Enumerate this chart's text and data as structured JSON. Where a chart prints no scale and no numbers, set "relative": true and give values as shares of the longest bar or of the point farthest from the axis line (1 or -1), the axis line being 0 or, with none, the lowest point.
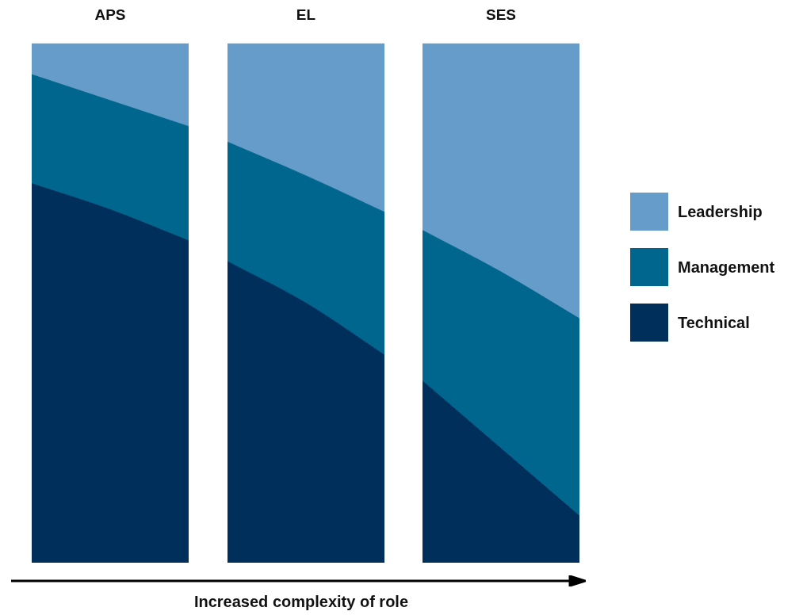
{
  "chart_data": [
    {
      "type": "area",
      "title": "APS",
      "stacked": true,
      "relative": true,
      "tick_labels": false,
      "marker": "none",
      "categories": [
        null,
        null,
        null
      ],
      "series": [
        {
          "color": "#002f5c",
          "values": [
            0.73,
            0.68,
            0.62
          ]
        },
        {
          "color": "#00668e",
          "values": [
            0.21,
            0.21,
            0.22
          ]
        },
        {
          "color": "#669cca",
          "values": [
            0.06,
            0.11,
            0.16
          ]
        }
      ]
    },
    {
      "type": "area",
      "title": "EL",
      "stacked": true,
      "relative": true,
      "tick_labels": false,
      "marker": "none",
      "categories": [
        null,
        null,
        null
      ],
      "series": [
        {
          "color": "#002f5c",
          "values": [
            0.58,
            0.5,
            0.4
          ]
        },
        {
          "color": "#00668e",
          "values": [
            0.23,
            0.245,
            0.275
          ]
        },
        {
          "color": "#669cca",
          "values": [
            0.19,
            0.255,
            0.325
          ]
        }
      ]
    },
    {
      "type": "area",
      "title": "SES",
      "stacked": true,
      "relative": true,
      "tick_labels": false,
      "marker": "none",
      "legend": "right",
      "annotations": [
        "Increased complexity of role"
      ],
      "categories": [
        null,
        null,
        null
      ],
      "series": [
        {
          "name": "Technical",
          "color": "#002f5c",
          "values": [
            0.35,
            0.22,
            0.09
          ]
        },
        {
          "name": "Management",
          "color": "#00668e",
          "values": [
            0.29,
            0.34,
            0.38
          ]
        },
        {
          "name": "Leadership",
          "color": "#669cca",
          "values": [
            0.36,
            0.44,
            0.53
          ]
        }
      ]
    }
  ]
}
